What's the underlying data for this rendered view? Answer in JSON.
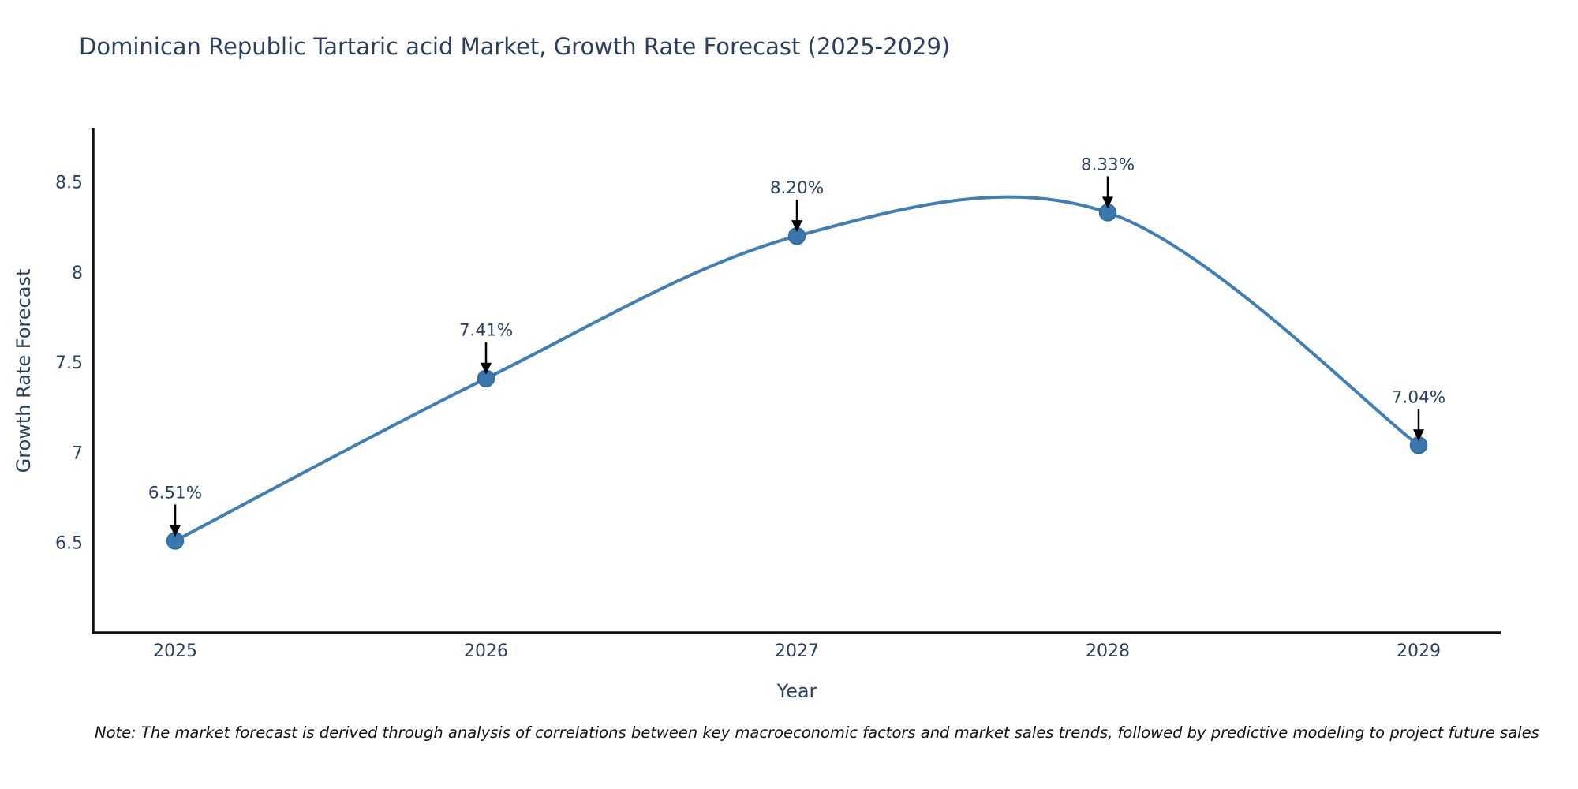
{
  "title": "Dominican Republic Tartaric acid Market, Growth Rate Forecast (2025-2029)",
  "note": "Note: The market forecast is derived through analysis of correlations between key macroeconomic factors and market sales trends, followed by predictive modeling to project future sales",
  "chart_data": {
    "type": "line",
    "title": "Dominican Republic Tartaric acid Market, Growth Rate Forecast (2025-2029)",
    "xlabel": "Year",
    "ylabel": "Growth Rate Forecast",
    "x": [
      2025,
      2026,
      2027,
      2028,
      2029
    ],
    "series": [
      {
        "name": "Growth Rate Forecast",
        "values": [
          6.51,
          7.41,
          8.2,
          8.33,
          7.04
        ]
      }
    ],
    "point_labels": [
      "6.51%",
      "7.41%",
      "8.20%",
      "8.33%",
      "7.04%"
    ],
    "x_tick_labels": [
      "2025",
      "2026",
      "2027",
      "2028",
      "2029"
    ],
    "y_ticks": [
      6.5,
      7,
      7.5,
      8,
      8.5
    ],
    "y_tick_labels": [
      "6.5",
      "7",
      "7.5",
      "8",
      "8.5"
    ],
    "xlim": [
      2024.736,
      2029.264
    ],
    "ylim": [
      6.0,
      8.8
    ],
    "line_shape": "spline",
    "grid": false,
    "legend_position": "none",
    "colors": {
      "line": "#3f7eb6",
      "marker_fill": "#3a77ad",
      "marker_outline": "#2f6a9e",
      "axis": "#111111",
      "tick_text": "#2a3f5f",
      "annotation_text": "#2a3f5f",
      "arrow": "#000000",
      "background": "#ffffff"
    }
  }
}
